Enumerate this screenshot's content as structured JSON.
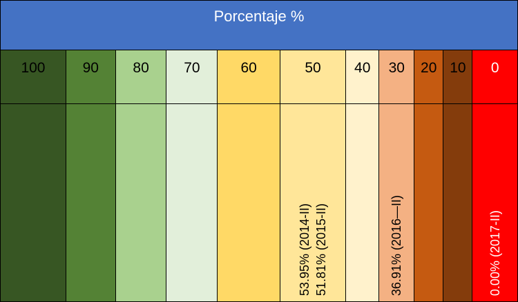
{
  "header": {
    "title": "Porcentaje %"
  },
  "scale": [
    {
      "label": "100",
      "color": "#375623",
      "text_color": "#000000"
    },
    {
      "label": "90",
      "color": "#548235",
      "text_color": "#000000"
    },
    {
      "label": "80",
      "color": "#a9d18e",
      "text_color": "#000000"
    },
    {
      "label": "70",
      "color": "#e2efda",
      "text_color": "#000000"
    },
    {
      "label": "60",
      "color": "#ffd966",
      "text_color": "#000000"
    },
    {
      "label": "50",
      "color": "#ffe699",
      "text_color": "#000000"
    },
    {
      "label": "40",
      "color": "#fff2cc",
      "text_color": "#000000"
    },
    {
      "label": "30",
      "color": "#f4b183",
      "text_color": "#000000"
    },
    {
      "label": "20",
      "color": "#c55a11",
      "text_color": "#000000"
    },
    {
      "label": "10",
      "color": "#843c0c",
      "text_color": "#000000"
    },
    {
      "label": "0",
      "color": "#ff0000",
      "text_color": "#ffffff"
    }
  ],
  "values": {
    "col_50": [
      "53.95% (2014-II)",
      "51.81% (2015-II)"
    ],
    "col_30": "36.91% (2016—II)",
    "col_0": "0.00% (2017-II)"
  }
}
